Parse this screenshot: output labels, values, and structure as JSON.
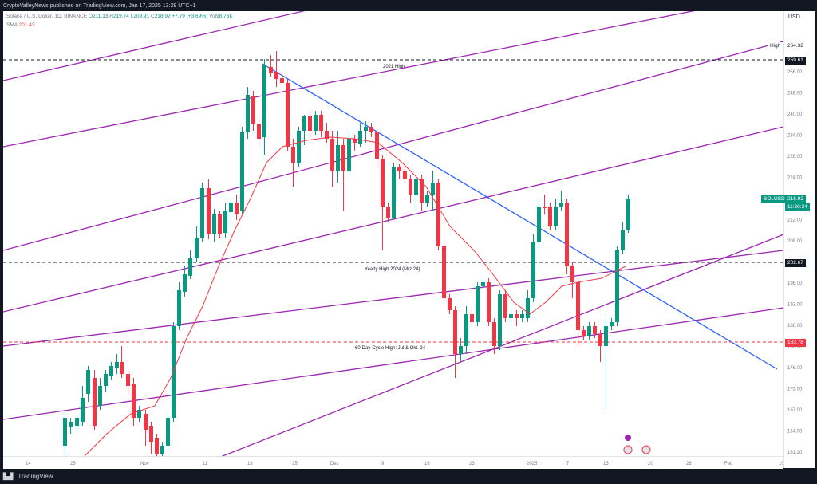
{
  "header": {
    "published": "CryptoValleyNews published on TradingView.com, Jan 17, 2025 13:29 UTC+1"
  },
  "legend": {
    "symbol": "Solana / U.S. Dollar, 1D, BINANCE",
    "o_label": "O",
    "o": "211.13",
    "h_label": "H",
    "h": "219.74",
    "l_label": "L",
    "l": "209.91",
    "c_label": "C",
    "c": "218.92",
    "change": "+7.79 (+3.69%)",
    "vol_label": "Vol",
    "vol": "98.76K",
    "sma_label": "SMA",
    "sma": "201.43"
  },
  "axis": {
    "currency": "USD",
    "price_ticks": [
      "256.00",
      "248.00",
      "240.00",
      "234.00",
      "228.00",
      "224.00",
      "216.00",
      "212.00",
      "208.00",
      "200.00",
      "196.00",
      "192.00",
      "188.00",
      "180.00",
      "176.00",
      "172.00",
      "167.00",
      "164.00",
      "161.20"
    ],
    "time_ticks": [
      "14",
      "25",
      "Nov",
      "11",
      "18",
      "25",
      "Dec",
      "9",
      "16",
      "23",
      "2025",
      "7",
      "13",
      "20",
      "26",
      "Feb",
      "10"
    ]
  },
  "price_labels": {
    "high_word": "High",
    "high_value": "264.32",
    "level_2021": "259.61",
    "symbol_tag": "SOLUSD",
    "last_price": "218.92",
    "countdown": "11:30:24",
    "level_2024": "202.67",
    "level_cycle": "183.78"
  },
  "annotations": {
    "high_2021": "2021 High",
    "yearly_high_2024": "Yearly High 2024 (Mrz 24)",
    "cycle_high": "60-Day-Cycle High: Jul & Okt. 24"
  },
  "footer": {
    "brand": "TradingView"
  },
  "colors": {
    "up": "#089981",
    "down": "#f23645",
    "channel": "#9c27b0",
    "trendline": "#2962ff",
    "sma": "#f23645"
  }
}
